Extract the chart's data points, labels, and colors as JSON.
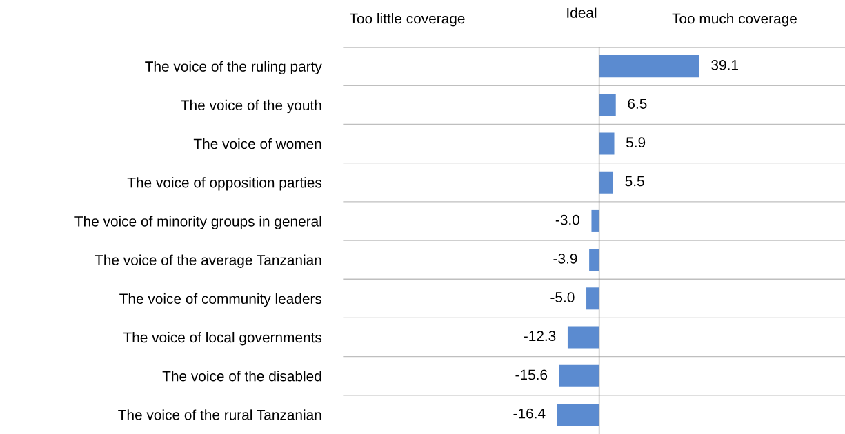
{
  "chart_data": {
    "type": "bar",
    "orientation": "horizontal",
    "annotations": [
      "Too little coverage",
      "Ideal",
      "Too much coverage"
    ],
    "categories": [
      "The voice of the ruling party",
      "The voice of the youth",
      "The voice of women",
      "The voice of opposition parties",
      "The voice of minority groups in general",
      "The voice of the average Tanzanian",
      "The voice of community leaders",
      "The voice of local governments",
      "The voice of the disabled",
      "The voice of the rural Tanzanian"
    ],
    "values": [
      39.1,
      6.5,
      5.9,
      5.5,
      -3.0,
      -3.9,
      -5.0,
      -12.3,
      -15.6,
      -16.4
    ],
    "value_labels": [
      "39.1",
      "6.5",
      "5.9",
      "5.5",
      "-3.0",
      "-3.9",
      "-5.0",
      "-12.3",
      "-15.6",
      "-16.4"
    ],
    "color": "#5b8bd0",
    "xlim": [
      -100,
      96
    ],
    "grid": "y",
    "tick_labels": "y"
  }
}
